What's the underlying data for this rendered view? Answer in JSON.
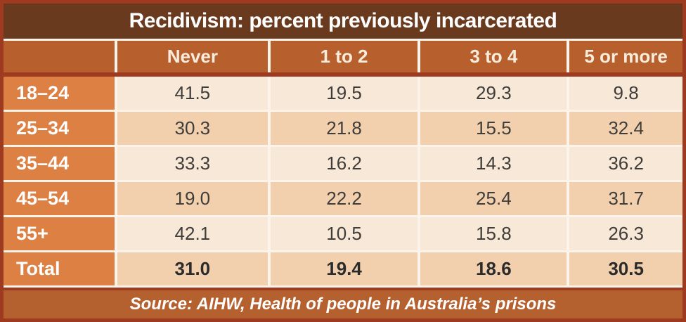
{
  "chart_data": {
    "type": "table",
    "title": "Recidivism: percent previously incarcerated",
    "columns": [
      "",
      "Never",
      "1 to 2",
      "3 to 4",
      "5 or more"
    ],
    "rows": [
      {
        "label": "18–24",
        "values": [
          "41.5",
          "19.5",
          "29.3",
          "9.8"
        ]
      },
      {
        "label": "25–34",
        "values": [
          "30.3",
          "21.8",
          "15.5",
          "32.4"
        ]
      },
      {
        "label": "35–44",
        "values": [
          "33.3",
          "16.2",
          "14.3",
          "36.2"
        ]
      },
      {
        "label": "45–54",
        "values": [
          "19.0",
          "22.2",
          "25.4",
          "31.7"
        ]
      },
      {
        "label": "55+",
        "values": [
          "42.1",
          "10.5",
          "15.8",
          "26.3"
        ]
      },
      {
        "label": "Total",
        "values": [
          "31.0",
          "19.4",
          "18.6",
          "30.5"
        ],
        "bold": true
      }
    ],
    "source": "Source: AIHW, Health of people in Australia’s prisons",
    "layout_hints": {
      "row_label_column": "age group",
      "values_unit": "percent",
      "total_row_bold": true
    }
  },
  "colors": {
    "dark-red": "#9d3a1f",
    "title-brown": "#6a3a1f",
    "header-orange": "#b7602e",
    "label-orange": "#dc8044",
    "footer-orange": "#b5602f",
    "row-light": "#f8e8d8",
    "row-dark": "#f2d0ae",
    "cream": "#fcf4ea"
  }
}
